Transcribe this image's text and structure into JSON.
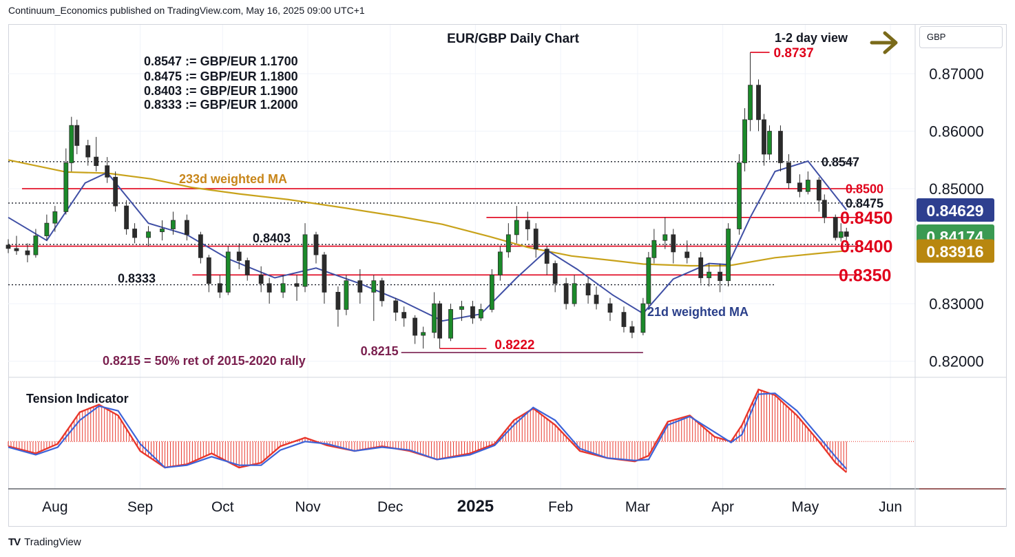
{
  "header": {
    "attribution": "Continuum_Economics published on TradingView.com, May 16, 2025 09:00 UTC+1"
  },
  "footer": {
    "logo_text": "TradingView"
  },
  "currency_button": "GBP",
  "colors": {
    "up_candle": "#1b8a2a",
    "down_candle": "#2b2b2b",
    "resistance_red": "#e0001a",
    "ma233": "#c8a21a",
    "ma21": "#3f4fa5",
    "tension_red": "#e8362b",
    "tension_blue": "#3c63d8",
    "price_box_blue": "#2e3f8f",
    "price_box_green": "#3a9a52",
    "price_box_gold": "#b8870f",
    "arrow_olive": "#7a6a1a",
    "fib_purple": "#7a1f4e"
  },
  "chart_data": {
    "type": "candlestick",
    "title": "EUR/GBP Daily Chart",
    "view_label": "1-2 day view",
    "view_arrow": "right-arrow-icon",
    "y_axis": {
      "ticks": [
        "0.87000",
        "0.86000",
        "0.85000",
        "0.83000",
        "0.82000"
      ],
      "ylim": [
        0.8172,
        0.8785
      ]
    },
    "x_axis": {
      "ticks": [
        "Aug",
        "Sep",
        "Oct",
        "Nov",
        "Dec",
        "2025",
        "Feb",
        "Mar",
        "Apr",
        "May",
        "Jun"
      ],
      "range": [
        "2024-07-15",
        "2025-06-10"
      ]
    },
    "conversion_notes": [
      "0.8547 := GBP/EUR 1.1700",
      "0.8475 := GBP/EUR 1.1800",
      "0.8403 := GBP/EUR 1.1900",
      "0.8333 := GBP/EUR 1.2000"
    ],
    "price_boxes": [
      {
        "value": 0.84629,
        "label": "0.84629",
        "style": "blue"
      },
      {
        "value": 0.84174,
        "label": "0.84174",
        "style": "green"
      },
      {
        "value": 0.83916,
        "label": "0.83916",
        "style": "gold"
      }
    ],
    "levels": [
      {
        "value": 0.8547,
        "label": "0.8547",
        "style": "dotted",
        "x_start": "2024-07-15",
        "x_end": "2025-05-16"
      },
      {
        "value": 0.85,
        "label": "0.8500",
        "style": "red",
        "x_start": "2024-07-20",
        "x_end": "2025-05-16"
      },
      {
        "value": 0.8475,
        "label": "0.8475",
        "style": "dotted",
        "x_start": "2024-07-15",
        "x_end": "2025-05-16"
      },
      {
        "value": 0.845,
        "label": "0.8450",
        "style": "red",
        "x_start": "2025-01-05",
        "x_end": "2025-05-16"
      },
      {
        "value": 0.8403,
        "label": "0.8403",
        "style": "dotted",
        "x_start": "2024-07-15",
        "x_end": "2025-05-16"
      },
      {
        "value": 0.84,
        "label": "0.8400",
        "style": "red",
        "x_start": "2024-07-15",
        "x_end": "2025-05-16"
      },
      {
        "value": 0.835,
        "label": "0.8350",
        "style": "red",
        "x_start": "2024-09-20",
        "x_end": "2025-05-16"
      },
      {
        "value": 0.8333,
        "label": "0.8333",
        "style": "dotted",
        "x_start": "2024-07-15",
        "x_end": "2025-04-20"
      }
    ],
    "annotations": [
      {
        "label": "0.8737",
        "value": 0.8737
      },
      {
        "label": "0.8222",
        "value": 0.8222
      },
      {
        "label": "0.8215",
        "value": 0.8215
      },
      {
        "label": "0.8215 = 50% ret of 2015-2020 rally"
      },
      {
        "label": "233d weighted MA"
      },
      {
        "label": "21d weighted MA"
      }
    ],
    "ohlc": {
      "columns": [
        "date",
        "open",
        "high",
        "low",
        "close"
      ],
      "rows": [
        [
          "2024-07-15",
          0.8402,
          0.8412,
          0.8388,
          0.8396
        ],
        [
          "2024-07-18",
          0.8396,
          0.8418,
          0.8385,
          0.8392
        ],
        [
          "2024-07-22",
          0.8392,
          0.8405,
          0.8372,
          0.8385
        ],
        [
          "2024-07-25",
          0.8385,
          0.843,
          0.838,
          0.8418
        ],
        [
          "2024-07-29",
          0.8418,
          0.8455,
          0.841,
          0.844
        ],
        [
          "2024-08-01",
          0.844,
          0.847,
          0.8425,
          0.846
        ],
        [
          "2024-08-05",
          0.846,
          0.857,
          0.8455,
          0.8545
        ],
        [
          "2024-08-07",
          0.8545,
          0.8625,
          0.853,
          0.861
        ],
        [
          "2024-08-09",
          0.861,
          0.862,
          0.856,
          0.8575
        ],
        [
          "2024-08-13",
          0.8575,
          0.8585,
          0.854,
          0.8555
        ],
        [
          "2024-08-16",
          0.8555,
          0.859,
          0.853,
          0.854
        ],
        [
          "2024-08-20",
          0.854,
          0.8555,
          0.851,
          0.852
        ],
        [
          "2024-08-23",
          0.852,
          0.853,
          0.846,
          0.847
        ],
        [
          "2024-08-27",
          0.847,
          0.848,
          0.842,
          0.843
        ],
        [
          "2024-08-30",
          0.843,
          0.844,
          0.8405,
          0.8415
        ],
        [
          "2024-09-04",
          0.8415,
          0.8435,
          0.84,
          0.8425
        ],
        [
          "2024-09-09",
          0.8425,
          0.8445,
          0.841,
          0.843
        ],
        [
          "2024-09-13",
          0.843,
          0.846,
          0.842,
          0.8445
        ],
        [
          "2024-09-18",
          0.8445,
          0.8455,
          0.841,
          0.842
        ],
        [
          "2024-09-23",
          0.842,
          0.8425,
          0.837,
          0.838
        ],
        [
          "2024-09-26",
          0.838,
          0.8385,
          0.832,
          0.8335
        ],
        [
          "2024-09-30",
          0.8335,
          0.835,
          0.831,
          0.832
        ],
        [
          "2024-10-03",
          0.832,
          0.84,
          0.8315,
          0.839
        ],
        [
          "2024-10-07",
          0.839,
          0.8405,
          0.836,
          0.8375
        ],
        [
          "2024-10-10",
          0.8375,
          0.838,
          0.834,
          0.835
        ],
        [
          "2024-10-15",
          0.835,
          0.8365,
          0.832,
          0.8335
        ],
        [
          "2024-10-18",
          0.8335,
          0.8345,
          0.83,
          0.832
        ],
        [
          "2024-10-23",
          0.832,
          0.835,
          0.831,
          0.8335
        ],
        [
          "2024-10-28",
          0.8335,
          0.835,
          0.8305,
          0.833
        ],
        [
          "2024-10-31",
          0.833,
          0.844,
          0.832,
          0.842
        ],
        [
          "2024-11-04",
          0.842,
          0.8425,
          0.837,
          0.8385
        ],
        [
          "2024-11-07",
          0.8385,
          0.839,
          0.83,
          0.832
        ],
        [
          "2024-11-12",
          0.832,
          0.833,
          0.826,
          0.829
        ],
        [
          "2024-11-15",
          0.829,
          0.835,
          0.828,
          0.834
        ],
        [
          "2024-11-20",
          0.834,
          0.836,
          0.83,
          0.832
        ],
        [
          "2024-11-25",
          0.832,
          0.835,
          0.827,
          0.834
        ],
        [
          "2024-11-28",
          0.834,
          0.8345,
          0.8295,
          0.8305
        ],
        [
          "2024-12-03",
          0.8305,
          0.831,
          0.827,
          0.8285
        ],
        [
          "2024-12-06",
          0.8285,
          0.8295,
          0.826,
          0.8275
        ],
        [
          "2024-12-10",
          0.8275,
          0.828,
          0.823,
          0.8245
        ],
        [
          "2024-12-13",
          0.8245,
          0.826,
          0.8222,
          0.825
        ],
        [
          "2024-12-17",
          0.825,
          0.832,
          0.824,
          0.83
        ],
        [
          "2024-12-19",
          0.83,
          0.8305,
          0.8222,
          0.824
        ],
        [
          "2024-12-23",
          0.824,
          0.83,
          0.8235,
          0.829
        ],
        [
          "2024-12-27",
          0.829,
          0.8305,
          0.827,
          0.8295
        ],
        [
          "2024-12-31",
          0.8295,
          0.8305,
          0.8265,
          0.8275
        ],
        [
          "2025-01-03",
          0.8275,
          0.83,
          0.827,
          0.829
        ],
        [
          "2025-01-07",
          0.829,
          0.836,
          0.8285,
          0.835
        ],
        [
          "2025-01-10",
          0.835,
          0.84,
          0.834,
          0.839
        ],
        [
          "2025-01-13",
          0.839,
          0.844,
          0.838,
          0.842
        ],
        [
          "2025-01-16",
          0.842,
          0.847,
          0.8405,
          0.8445
        ],
        [
          "2025-01-20",
          0.8445,
          0.846,
          0.841,
          0.843
        ],
        [
          "2025-01-23",
          0.843,
          0.844,
          0.838,
          0.8395
        ],
        [
          "2025-01-27",
          0.8395,
          0.84,
          0.835,
          0.837
        ],
        [
          "2025-01-30",
          0.837,
          0.8375,
          0.832,
          0.8335
        ],
        [
          "2025-02-03",
          0.8335,
          0.8345,
          0.829,
          0.83
        ],
        [
          "2025-02-06",
          0.83,
          0.835,
          0.8295,
          0.8335
        ],
        [
          "2025-02-11",
          0.8335,
          0.8345,
          0.83,
          0.8315
        ],
        [
          "2025-02-14",
          0.8315,
          0.833,
          0.829,
          0.83
        ],
        [
          "2025-02-19",
          0.83,
          0.831,
          0.827,
          0.8285
        ],
        [
          "2025-02-24",
          0.8285,
          0.8295,
          0.825,
          0.826
        ],
        [
          "2025-02-27",
          0.826,
          0.827,
          0.824,
          0.825
        ],
        [
          "2025-03-03",
          0.825,
          0.831,
          0.8245,
          0.83
        ],
        [
          "2025-03-05",
          0.83,
          0.839,
          0.8295,
          0.838
        ],
        [
          "2025-03-07",
          0.838,
          0.843,
          0.837,
          0.841
        ],
        [
          "2025-03-11",
          0.841,
          0.845,
          0.8395,
          0.842
        ],
        [
          "2025-03-14",
          0.842,
          0.843,
          0.837,
          0.839
        ],
        [
          "2025-03-19",
          0.839,
          0.841,
          0.837,
          0.838
        ],
        [
          "2025-03-24",
          0.838,
          0.839,
          0.8335,
          0.8345
        ],
        [
          "2025-03-27",
          0.8345,
          0.837,
          0.833,
          0.8355
        ],
        [
          "2025-03-31",
          0.8355,
          0.837,
          0.832,
          0.834
        ],
        [
          "2025-04-03",
          0.834,
          0.844,
          0.833,
          0.843
        ],
        [
          "2025-04-07",
          0.843,
          0.856,
          0.842,
          0.8545
        ],
        [
          "2025-04-09",
          0.8545,
          0.864,
          0.853,
          0.862
        ],
        [
          "2025-04-11",
          0.862,
          0.8737,
          0.86,
          0.868
        ],
        [
          "2025-04-14",
          0.868,
          0.869,
          0.86,
          0.862
        ],
        [
          "2025-04-16",
          0.862,
          0.863,
          0.854,
          0.856
        ],
        [
          "2025-04-18",
          0.856,
          0.861,
          0.855,
          0.86
        ],
        [
          "2025-04-22",
          0.86,
          0.861,
          0.853,
          0.8545
        ],
        [
          "2025-04-25",
          0.8545,
          0.856,
          0.85,
          0.851
        ],
        [
          "2025-04-29",
          0.851,
          0.8525,
          0.8485,
          0.8495
        ],
        [
          "2025-05-02",
          0.8495,
          0.853,
          0.849,
          0.8515
        ],
        [
          "2025-05-06",
          0.8515,
          0.852,
          0.846,
          0.848
        ],
        [
          "2025-05-08",
          0.848,
          0.849,
          0.844,
          0.845
        ],
        [
          "2025-05-12",
          0.845,
          0.8455,
          0.841,
          0.8415
        ],
        [
          "2025-05-14",
          0.8415,
          0.844,
          0.8408,
          0.8425
        ],
        [
          "2025-05-16",
          0.8425,
          0.8432,
          0.841,
          0.8417
        ]
      ]
    },
    "ma233": {
      "columns": [
        "date",
        "value"
      ],
      "rows": [
        [
          "2024-07-15",
          0.855
        ],
        [
          "2024-08-05",
          0.8529
        ],
        [
          "2024-08-20",
          0.8527
        ],
        [
          "2024-09-05",
          0.8517
        ],
        [
          "2024-09-20",
          0.8502
        ],
        [
          "2024-10-07",
          0.8491
        ],
        [
          "2024-10-25",
          0.8481
        ],
        [
          "2024-11-15",
          0.8466
        ],
        [
          "2024-12-05",
          0.8451
        ],
        [
          "2024-12-20",
          0.8438
        ],
        [
          "2025-01-06",
          0.8417
        ],
        [
          "2025-01-20",
          0.8398
        ],
        [
          "2025-02-05",
          0.8383
        ],
        [
          "2025-02-20",
          0.8375
        ],
        [
          "2025-03-03",
          0.8369
        ],
        [
          "2025-03-20",
          0.8366
        ],
        [
          "2025-04-03",
          0.8366
        ],
        [
          "2025-04-20",
          0.838
        ],
        [
          "2025-05-05",
          0.8387
        ],
        [
          "2025-05-16",
          0.8392
        ]
      ]
    },
    "ma21": {
      "columns": [
        "date",
        "value"
      ],
      "rows": [
        [
          "2024-07-15",
          0.845
        ],
        [
          "2024-07-29",
          0.841
        ],
        [
          "2024-08-12",
          0.851
        ],
        [
          "2024-08-20",
          0.8528
        ],
        [
          "2024-09-04",
          0.844
        ],
        [
          "2024-09-18",
          0.842
        ],
        [
          "2024-10-03",
          0.8378
        ],
        [
          "2024-10-20",
          0.8345
        ],
        [
          "2024-11-04",
          0.8362
        ],
        [
          "2024-11-20",
          0.8335
        ],
        [
          "2024-12-05",
          0.8305
        ],
        [
          "2024-12-20",
          0.827
        ],
        [
          "2025-01-03",
          0.8282
        ],
        [
          "2025-01-16",
          0.8345
        ],
        [
          "2025-01-27",
          0.8393
        ],
        [
          "2025-02-07",
          0.836
        ],
        [
          "2025-02-20",
          0.8315
        ],
        [
          "2025-03-03",
          0.8283
        ],
        [
          "2025-03-14",
          0.8343
        ],
        [
          "2025-03-27",
          0.837
        ],
        [
          "2025-04-03",
          0.8368
        ],
        [
          "2025-04-11",
          0.845
        ],
        [
          "2025-04-20",
          0.853
        ],
        [
          "2025-05-02",
          0.8548
        ],
        [
          "2025-05-16",
          0.8463
        ]
      ]
    },
    "tension_indicator": {
      "title": "Tension Indicator",
      "ylim": [
        -1.0,
        1.3
      ],
      "columns": [
        "date",
        "red",
        "blue"
      ],
      "rows": [
        [
          "2024-07-15",
          -0.1,
          -0.12
        ],
        [
          "2024-07-25",
          -0.25,
          -0.28
        ],
        [
          "2024-08-02",
          -0.05,
          -0.12
        ],
        [
          "2024-08-10",
          0.62,
          0.45
        ],
        [
          "2024-08-17",
          0.78,
          0.75
        ],
        [
          "2024-08-24",
          0.55,
          0.65
        ],
        [
          "2024-09-01",
          -0.2,
          -0.05
        ],
        [
          "2024-09-10",
          -0.55,
          -0.55
        ],
        [
          "2024-09-18",
          -0.48,
          -0.5
        ],
        [
          "2024-09-27",
          -0.25,
          -0.32
        ],
        [
          "2024-10-07",
          -0.55,
          -0.5
        ],
        [
          "2024-10-15",
          -0.45,
          -0.5
        ],
        [
          "2024-10-22",
          -0.1,
          -0.18
        ],
        [
          "2024-10-31",
          0.08,
          0.0
        ],
        [
          "2024-11-08",
          -0.08,
          -0.05
        ],
        [
          "2024-11-18",
          -0.2,
          -0.2
        ],
        [
          "2024-11-28",
          -0.1,
          -0.12
        ],
        [
          "2024-12-08",
          -0.2,
          -0.18
        ],
        [
          "2024-12-18",
          -0.38,
          -0.38
        ],
        [
          "2024-12-30",
          -0.25,
          -0.28
        ],
        [
          "2025-01-08",
          -0.05,
          -0.08
        ],
        [
          "2025-01-15",
          0.45,
          0.35
        ],
        [
          "2025-01-22",
          0.7,
          0.72
        ],
        [
          "2025-01-30",
          0.35,
          0.45
        ],
        [
          "2025-02-08",
          -0.2,
          -0.15
        ],
        [
          "2025-02-18",
          -0.35,
          -0.35
        ],
        [
          "2025-02-28",
          -0.42,
          -0.4
        ],
        [
          "2025-03-05",
          -0.3,
          -0.38
        ],
        [
          "2025-03-12",
          0.42,
          0.35
        ],
        [
          "2025-03-20",
          0.55,
          0.53
        ],
        [
          "2025-03-29",
          0.1,
          0.2
        ],
        [
          "2025-04-04",
          0.0,
          -0.02
        ],
        [
          "2025-04-08",
          0.35,
          0.15
        ],
        [
          "2025-04-14",
          1.1,
          1.0
        ],
        [
          "2025-04-20",
          0.98,
          1.02
        ],
        [
          "2025-04-28",
          0.55,
          0.65
        ],
        [
          "2025-05-06",
          0.0,
          0.1
        ],
        [
          "2025-05-12",
          -0.45,
          -0.32
        ],
        [
          "2025-05-16",
          -0.65,
          -0.58
        ]
      ]
    }
  }
}
